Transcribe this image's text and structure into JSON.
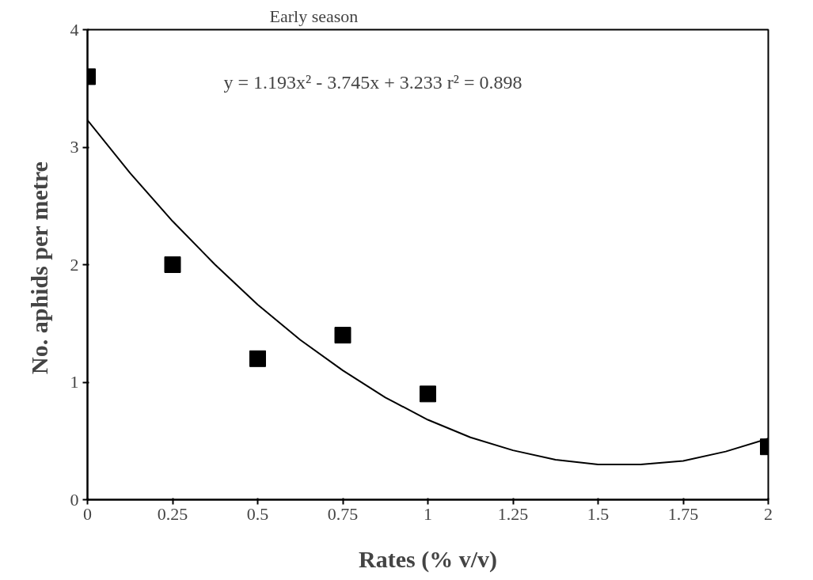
{
  "chart_data": {
    "type": "scatter",
    "title": "Early season",
    "xlabel": "Rates (% v/v)",
    "ylabel": "No. aphids  per metre",
    "annotations": [
      "y = 1.193x² - 3.745x + 3.233   r² = 0.898"
    ],
    "xlim": [
      0,
      2
    ],
    "ylim": [
      0,
      4
    ],
    "xticks": [
      0,
      0.25,
      0.5,
      0.75,
      1,
      1.25,
      1.5,
      1.75,
      2
    ],
    "yticks": [
      0,
      1,
      2,
      3,
      4
    ],
    "grid": false,
    "marker": "square",
    "series": [
      {
        "color": "#000000",
        "x": [
          0,
          0.25,
          0.5,
          0.75,
          1,
          2
        ],
        "values": [
          3.6,
          2.0,
          1.2,
          1.4,
          0.9,
          0.45
        ]
      },
      {
        "type": "line",
        "color": "#000000",
        "line_style": "solid",
        "marker": "none",
        "x": [
          0,
          0.125,
          0.25,
          0.375,
          0.5,
          0.625,
          0.75,
          0.875,
          1,
          1.125,
          1.25,
          1.375,
          1.5,
          1.625,
          1.75,
          1.875,
          2
        ],
        "values": [
          3.23,
          2.78,
          2.37,
          2.0,
          1.66,
          1.36,
          1.1,
          0.87,
          0.68,
          0.53,
          0.42,
          0.34,
          0.3,
          0.3,
          0.33,
          0.41,
          0.52
        ]
      }
    ]
  }
}
